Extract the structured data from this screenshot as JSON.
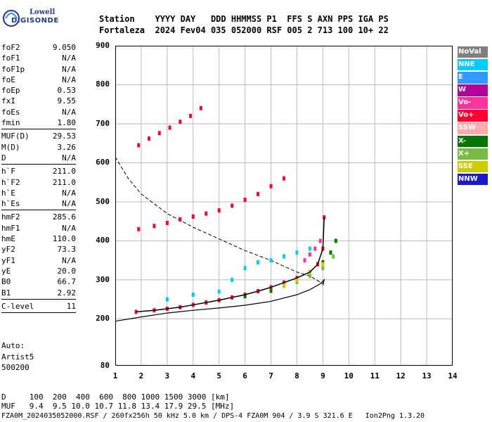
{
  "logo": {
    "line1": "Lowell",
    "line2": "DIGISONDE"
  },
  "header": {
    "line1": "Station    YYYY DAY   DDD HHMMSS P1  FFS S AXN PPS IGA PS",
    "line2": "Fortaleza  2024 Fev04 035 052000 RSF 005 2 713 100 10+ 22"
  },
  "params_group1": [
    {
      "label": "foF2",
      "value": "9.050"
    },
    {
      "label": "foF1",
      "value": "N/A"
    },
    {
      "label": "foF1p",
      "value": "N/A"
    },
    {
      "label": "foE",
      "value": "N/A"
    },
    {
      "label": "foEp",
      "value": "0.53"
    },
    {
      "label": "fxI",
      "value": "9.55"
    },
    {
      "label": "foEs",
      "value": "N/A"
    },
    {
      "label": "fmin",
      "value": "1.80"
    }
  ],
  "params_group2": [
    {
      "label": "MUF(D)",
      "value": "29.53"
    },
    {
      "label": "M(D)",
      "value": "3.26"
    },
    {
      "label": "D",
      "value": "N/A"
    }
  ],
  "params_group3": [
    {
      "label": "h`F",
      "value": "211.0"
    },
    {
      "label": "h`F2",
      "value": "211.0"
    },
    {
      "label": "h`E",
      "value": "N/A"
    },
    {
      "label": "h`Es",
      "value": "N/A"
    }
  ],
  "params_group4": [
    {
      "label": "hmF2",
      "value": "285.6"
    },
    {
      "label": "hmF1",
      "value": "N/A"
    },
    {
      "label": "hmE",
      "value": "110.0"
    },
    {
      "label": "yF2",
      "value": "73.3"
    },
    {
      "label": "yF1",
      "value": "N/A"
    },
    {
      "label": "yE",
      "value": "20.0"
    },
    {
      "label": "B0",
      "value": "66.7"
    },
    {
      "label": "B1",
      "value": "2.92"
    }
  ],
  "params_group5": [
    {
      "label": "C-level",
      "value": "11"
    }
  ],
  "auto": {
    "l1": "Auto:",
    "l2": "Artist5",
    "l3": "500200"
  },
  "legend": [
    {
      "label": "NoVal",
      "color": "#808080"
    },
    {
      "label": "NNE",
      "color": "#00ccff"
    },
    {
      "label": "E",
      "color": "#3399ff"
    },
    {
      "label": "W",
      "color": "#b0009c"
    },
    {
      "label": "Vo-",
      "color": "#ff3399"
    },
    {
      "label": "Vo+",
      "color": "#ff0033"
    },
    {
      "label": "SSW",
      "color": "#ffaaaa"
    },
    {
      "label": "X-",
      "color": "#007700"
    },
    {
      "label": "X+",
      "color": "#77bb44"
    },
    {
      "label": "SSE",
      "color": "#cccc00"
    },
    {
      "label": "NNW",
      "color": "#1a1acc"
    }
  ],
  "bottom": {
    "l1": "D     100  200  400  600  800 1000 1500 3000 [km]",
    "l2": "MUF   9.4  9.5 10.0 10.7 11.8 13.4 17.9 29.5 [MHz]",
    "l3": "FZA0M_2024035052000.RSF / 260fx256h 50 kHz 5.0 km / DPS-4 FZA0M 904 / 3.9 S 321.6 E   Ion2Png 1.3.20"
  },
  "chart_data": {
    "type": "scatter",
    "xlabel": "",
    "ylabel": "",
    "xlim": [
      1,
      14
    ],
    "ylim": [
      80,
      900
    ],
    "x_ticks": [
      1,
      2,
      3,
      4,
      5,
      6,
      7,
      8,
      9,
      10,
      11,
      12,
      13,
      14
    ],
    "y_ticks": [
      80,
      200,
      300,
      400,
      500,
      600,
      700,
      800,
      900
    ],
    "grid": true,
    "series": [
      {
        "name": "Vo+",
        "color": "#ff0033",
        "x": [
          1.8,
          2.5,
          3,
          3.5,
          4,
          4.5,
          5,
          5.5,
          6,
          6.5,
          7,
          7.5,
          8,
          8.5,
          8.8,
          9,
          9.05
        ],
        "y": [
          218,
          222,
          226,
          230,
          236,
          242,
          248,
          255,
          262,
          271,
          281,
          293,
          305,
          320,
          340,
          380,
          460
        ]
      },
      {
        "name": "Vo+ 2nd hop",
        "color": "#ff0033",
        "x": [
          1.9,
          2.5,
          3,
          3.5,
          4,
          4.5,
          5,
          5.5,
          6,
          6.5,
          7,
          7.5
        ],
        "y": [
          430,
          438,
          446,
          455,
          462,
          470,
          478,
          490,
          505,
          520,
          540,
          560
        ]
      },
      {
        "name": "Vo+ 3rd hop",
        "color": "#ff0033",
        "x": [
          1.9,
          2.3,
          2.7,
          3.1,
          3.5,
          3.9,
          4.3
        ],
        "y": [
          645,
          662,
          676,
          690,
          705,
          720,
          740
        ]
      },
      {
        "name": "X-",
        "color": "#007700",
        "x": [
          6,
          7,
          7.5,
          8,
          8.5,
          9,
          9.3,
          9.5
        ],
        "y": [
          258,
          272,
          285,
          300,
          320,
          345,
          370,
          400
        ]
      },
      {
        "name": "NNE",
        "color": "#00ccff",
        "x": [
          3,
          4,
          5,
          5.5,
          6,
          6.5,
          7,
          7.5,
          8,
          8.5
        ],
        "y": [
          250,
          262,
          270,
          300,
          330,
          345,
          350,
          360,
          370,
          380
        ]
      },
      {
        "name": "Vo-",
        "color": "#ff3399",
        "x": [
          8.3,
          8.5,
          8.7,
          8.9
        ],
        "y": [
          350,
          365,
          380,
          400
        ]
      },
      {
        "name": "X+",
        "color": "#77bb44",
        "x": [
          8,
          8.5,
          9,
          9.4
        ],
        "y": [
          295,
          310,
          330,
          360
        ]
      },
      {
        "name": "SSE",
        "color": "#cccc00",
        "x": [
          7.5,
          8,
          8.5,
          9
        ],
        "y": [
          285,
          300,
          320,
          340
        ]
      }
    ],
    "profile_line": {
      "x": [
        0.9,
        2,
        3,
        4,
        5,
        6,
        7,
        8,
        8.5,
        8.9,
        9.05,
        9
      ],
      "y": [
        193,
        205,
        215,
        222,
        228,
        235,
        245,
        262,
        275,
        290,
        300,
        286
      ]
    },
    "dashed_line": {
      "x": [
        1,
        1.5,
        2,
        3,
        4,
        5,
        6,
        7,
        8,
        8.5,
        9
      ],
      "y": [
        615,
        560,
        520,
        470,
        435,
        405,
        375,
        350,
        320,
        310,
        290
      ]
    }
  }
}
